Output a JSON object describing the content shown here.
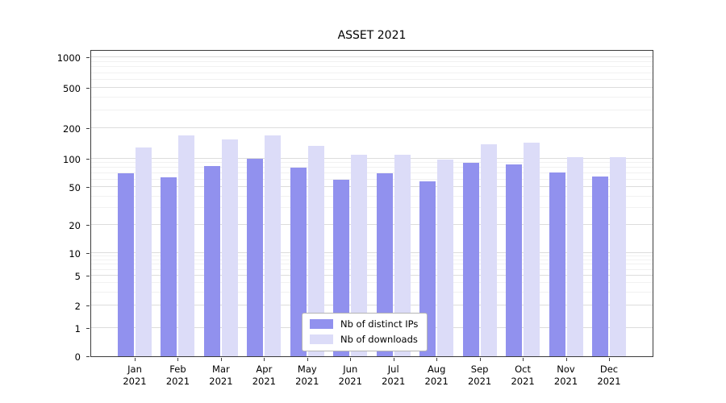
{
  "chart_data": {
    "type": "bar",
    "title": "ASSET 2021",
    "y_scale": "symlog",
    "y_ticks": [
      0,
      1,
      2,
      5,
      10,
      20,
      50,
      100,
      200,
      500,
      1000
    ],
    "categories": [
      "Jan",
      "Feb",
      "Mar",
      "Apr",
      "May",
      "Jun",
      "Jul",
      "Aug",
      "Sep",
      "Oct",
      "Nov",
      "Dec"
    ],
    "year": "2021",
    "series": [
      {
        "name": "Nb of distinct IPs",
        "color": "#9191ee",
        "values": [
          70,
          64,
          84,
          100,
          80,
          60,
          70,
          58,
          90,
          88,
          72,
          65
        ]
      },
      {
        "name": "Nb of downloads",
        "color": "#dcdcf8",
        "values": [
          130,
          170,
          155,
          170,
          135,
          110,
          110,
          98,
          140,
          145,
          103,
          103
        ]
      }
    ],
    "legend_position": "lower center",
    "grid": "on"
  }
}
